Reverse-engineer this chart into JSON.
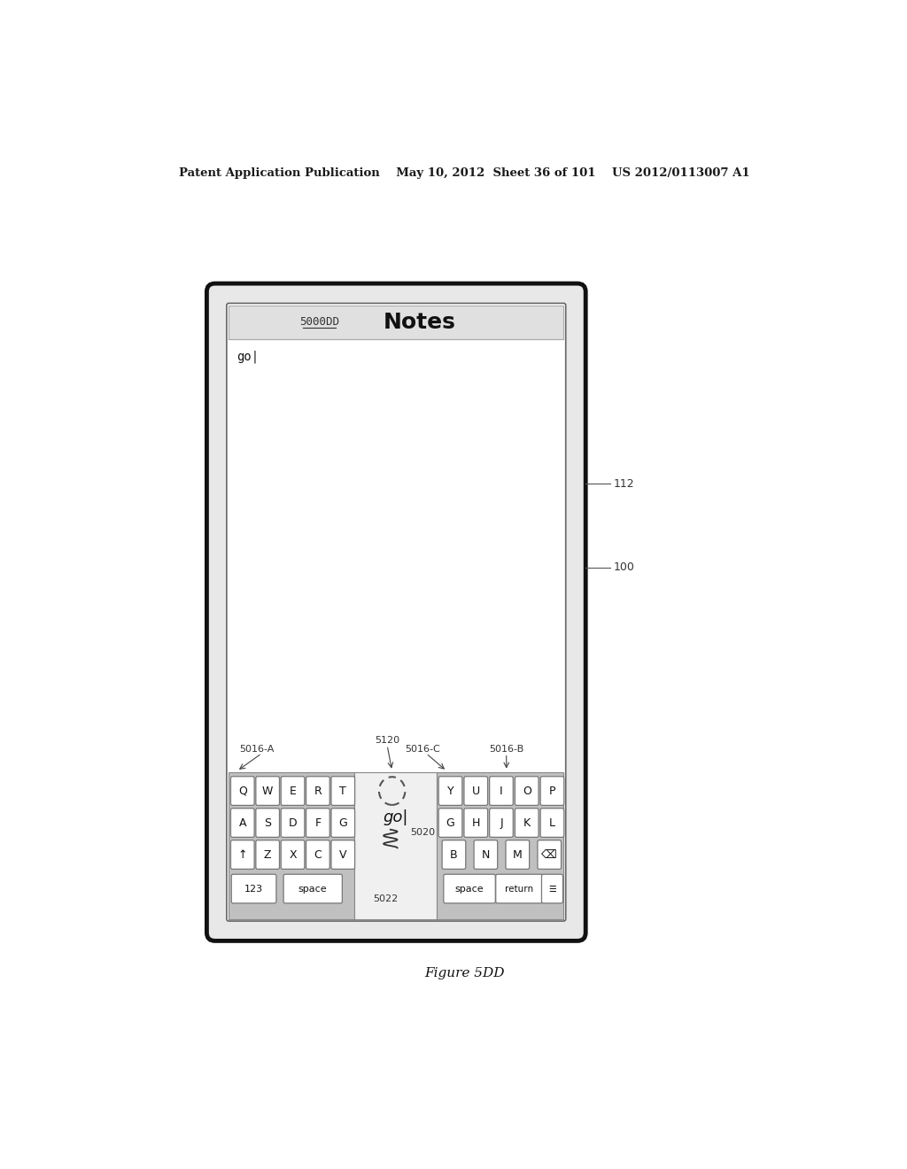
{
  "bg_color": "#ffffff",
  "header_text": "Patent Application Publication    May 10, 2012  Sheet 36 of 101    US 2012/0113007 A1",
  "figure_label": "Figure 5DD",
  "device_label": "100",
  "side_label": "112",
  "title_label": "5000DD",
  "notes_title": "Notes",
  "text_content": "go",
  "keyboard_left_rows": [
    [
      "Q",
      "W",
      "E",
      "R",
      "T"
    ],
    [
      "A",
      "S",
      "D",
      "F",
      "G"
    ],
    [
      "↑",
      "Z",
      "X",
      "C",
      "V"
    ]
  ],
  "keyboard_right_rows": [
    [
      "Y",
      "U",
      "I",
      "O",
      "P"
    ],
    [
      "G",
      "H",
      "J",
      "K",
      "L"
    ],
    [
      "B",
      "N",
      "M",
      "⌫"
    ]
  ],
  "label_5016A": "5016-A",
  "label_5016B": "5016-B",
  "label_5016C": "5016-C",
  "label_5120": "5120",
  "label_5020": "5020",
  "label_5022": "5022"
}
